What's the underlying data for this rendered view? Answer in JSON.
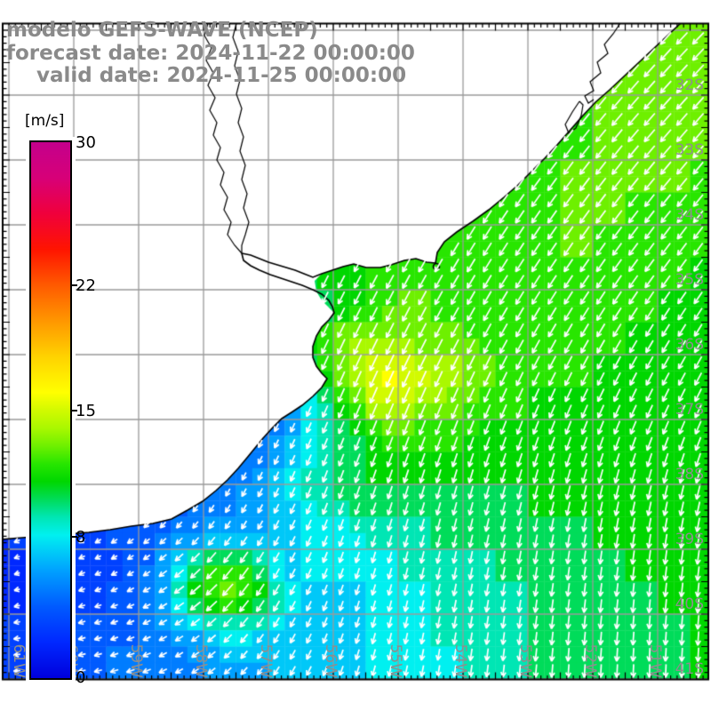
{
  "title": {
    "line1": "modelo GEFS-WAVE (NCEP)",
    "line2": "forecast date: 2024-11-22 00:00:00",
    "line3": "valid date: 2024-11-25 00:00:00"
  },
  "colorbar": {
    "unit": "[m/s]",
    "ticks": [
      {
        "value": 30,
        "label": "30"
      },
      {
        "value": 22,
        "label": "22"
      },
      {
        "value": 15,
        "label": "15"
      },
      {
        "value": 8,
        "label": "8"
      },
      {
        "value": 0,
        "label": "0"
      }
    ],
    "min": 0,
    "max": 30,
    "stops": [
      {
        "v": 0,
        "rgb": [
          0,
          0,
          220
        ]
      },
      {
        "v": 2,
        "rgb": [
          0,
          40,
          255
        ]
      },
      {
        "v": 4,
        "rgb": [
          0,
          90,
          255
        ]
      },
      {
        "v": 6,
        "rgb": [
          0,
          160,
          255
        ]
      },
      {
        "v": 8,
        "rgb": [
          0,
          240,
          240
        ]
      },
      {
        "v": 9,
        "rgb": [
          0,
          230,
          180
        ]
      },
      {
        "v": 10,
        "rgb": [
          0,
          220,
          90
        ]
      },
      {
        "v": 11,
        "rgb": [
          0,
          215,
          0
        ]
      },
      {
        "v": 12,
        "rgb": [
          40,
          230,
          0
        ]
      },
      {
        "v": 13,
        "rgb": [
          110,
          240,
          0
        ]
      },
      {
        "v": 14,
        "rgb": [
          170,
          248,
          0
        ]
      },
      {
        "v": 15,
        "rgb": [
          210,
          250,
          0
        ]
      },
      {
        "v": 16,
        "rgb": [
          255,
          255,
          0
        ]
      },
      {
        "v": 18,
        "rgb": [
          255,
          210,
          0
        ]
      },
      {
        "v": 20,
        "rgb": [
          255,
          150,
          0
        ]
      },
      {
        "v": 22,
        "rgb": [
          255,
          90,
          0
        ]
      },
      {
        "v": 24,
        "rgb": [
          255,
          20,
          0
        ]
      },
      {
        "v": 26,
        "rgb": [
          240,
          0,
          60
        ]
      },
      {
        "v": 28,
        "rgb": [
          215,
          0,
          120
        ]
      },
      {
        "v": 30,
        "rgb": [
          196,
          0,
          140
        ]
      }
    ]
  },
  "axes": {
    "lat_labels": [
      "32S",
      "33S",
      "34S",
      "35S",
      "36S",
      "37S",
      "38S",
      "39S",
      "40S",
      "41S"
    ],
    "lat_values": [
      -32,
      -33,
      -34,
      -35,
      -36,
      -37,
      -38,
      -39,
      -40,
      -41
    ],
    "lon_labels": [
      "61W",
      "60W",
      "59W",
      "58W",
      "57W",
      "56W",
      "55W",
      "54W",
      "53W",
      "52W",
      "51W"
    ],
    "lon_values": [
      -61,
      -60,
      -59,
      -58,
      -57,
      -56,
      -55,
      -54,
      -53,
      -52,
      -51
    ]
  },
  "colors": {
    "grid_line": "#9a9a9a",
    "coastline": "#000000",
    "border": "#000000",
    "arrow": "#ffffff",
    "land": "#ffffff",
    "title_text": "#8a8a8a",
    "axis_text": "#8e8e8e"
  },
  "chart_data": {
    "type": "heatmap",
    "units": "m/s",
    "speed_grid": {
      "lon0": -61.25,
      "dlon": 0.5,
      "lat0": -30.75,
      "dlat": 0.5,
      "cols": 23,
      "rows": 21,
      "values": [
        [
          8,
          8,
          8,
          8,
          8,
          8,
          8,
          8,
          8,
          9,
          9,
          9,
          9,
          10,
          10,
          10,
          11,
          11,
          12,
          12,
          13,
          13,
          13
        ],
        [
          8,
          8,
          8,
          8,
          8,
          8,
          8,
          8,
          8,
          9,
          9,
          9,
          10,
          10,
          10,
          11,
          11,
          12,
          12,
          13,
          13,
          13,
          13
        ],
        [
          8,
          8,
          8,
          8,
          8,
          8,
          8,
          8,
          9,
          9,
          9,
          10,
          10,
          10,
          11,
          11,
          11,
          12,
          12,
          13,
          13,
          13,
          13
        ],
        [
          8,
          8,
          8,
          8,
          8,
          8,
          8,
          9,
          9,
          9,
          10,
          10,
          10,
          11,
          11,
          11,
          11,
          9,
          12,
          13,
          13,
          13,
          13
        ],
        [
          8,
          8,
          8,
          8,
          8,
          8,
          9,
          9,
          9,
          10,
          10,
          10,
          11,
          11,
          11,
          11,
          12,
          12,
          12,
          13,
          13,
          13,
          13
        ],
        [
          8,
          8,
          8,
          8,
          8,
          9,
          9,
          9,
          10,
          10,
          10,
          11,
          11,
          11,
          11,
          12,
          12,
          12,
          13,
          13,
          13,
          13,
          12
        ],
        [
          8,
          8,
          8,
          8,
          9,
          9,
          9,
          10,
          10,
          10,
          11,
          11,
          11,
          11,
          12,
          12,
          12,
          12,
          13,
          13,
          12,
          12,
          12
        ],
        [
          7,
          7,
          7,
          8,
          8,
          9,
          9,
          10,
          10,
          11,
          11,
          11,
          11,
          12,
          12,
          12,
          12,
          12,
          13,
          12,
          12,
          12,
          12
        ],
        [
          6,
          6,
          7,
          7,
          8,
          8,
          9,
          9,
          8,
          10,
          11,
          11,
          12,
          12,
          12,
          12,
          12,
          12,
          12,
          12,
          12,
          12,
          11
        ],
        [
          5,
          5,
          6,
          6,
          7,
          8,
          8,
          9,
          7,
          7,
          9,
          11,
          12,
          13,
          12,
          12,
          12,
          12,
          12,
          12,
          12,
          11,
          11
        ],
        [
          4,
          5,
          5,
          6,
          7,
          7,
          8,
          8,
          6,
          8,
          12,
          14,
          14,
          13,
          13,
          12,
          12,
          12,
          12,
          12,
          11,
          11,
          11
        ],
        [
          4,
          4,
          5,
          5,
          6,
          7,
          8,
          8,
          4,
          6,
          11,
          14,
          16,
          15,
          14,
          13,
          12,
          12,
          12,
          11,
          11,
          11,
          11
        ],
        [
          4,
          4,
          4,
          5,
          6,
          7,
          7,
          8,
          4,
          5,
          9,
          12,
          15,
          14,
          13,
          12,
          12,
          11,
          11,
          11,
          11,
          11,
          11
        ],
        [
          3,
          4,
          4,
          5,
          5,
          6,
          7,
          7,
          4,
          6,
          8,
          10,
          12,
          12,
          12,
          11,
          11,
          11,
          11,
          11,
          11,
          11,
          11
        ],
        [
          3,
          3,
          4,
          4,
          5,
          5,
          3,
          4,
          5,
          7,
          9,
          10,
          11,
          11,
          11,
          11,
          11,
          11,
          11,
          11,
          11,
          11,
          11
        ],
        [
          3,
          3,
          3,
          4,
          4,
          5,
          4,
          5,
          6,
          7,
          9,
          10,
          10,
          10,
          10,
          10,
          10,
          11,
          11,
          11,
          11,
          11,
          11
        ],
        [
          2,
          3,
          3,
          3,
          4,
          4,
          5,
          6,
          6,
          7,
          8,
          8,
          9,
          9,
          10,
          10,
          10,
          10,
          10,
          11,
          11,
          11,
          11
        ],
        [
          2,
          2,
          3,
          3,
          3,
          5,
          9,
          12,
          11,
          7,
          8,
          8,
          8,
          9,
          9,
          9,
          10,
          10,
          10,
          10,
          11,
          11,
          11
        ],
        [
          2,
          2,
          3,
          3,
          4,
          5,
          10,
          13,
          12,
          8,
          7,
          7,
          8,
          8,
          9,
          9,
          9,
          10,
          10,
          10,
          10,
          11,
          11
        ],
        [
          3,
          3,
          3,
          4,
          4,
          5,
          6,
          8,
          8,
          7,
          7,
          7,
          8,
          8,
          9,
          9,
          9,
          10,
          10,
          10,
          10,
          10,
          11
        ],
        [
          3,
          3,
          4,
          4,
          5,
          5,
          5,
          6,
          6,
          7,
          7,
          7,
          8,
          8,
          8,
          9,
          9,
          10,
          10,
          10,
          10,
          10,
          11
        ]
      ]
    },
    "direction_grid": {
      "lon0": -61,
      "dlon": 1,
      "lat0": -31,
      "dlat": 1,
      "cols": 12,
      "rows": 11,
      "values": [
        [
          210,
          210,
          210,
          210,
          210,
          210,
          212,
          215,
          218,
          220,
          222,
          225
        ],
        [
          210,
          210,
          210,
          210,
          210,
          210,
          212,
          215,
          218,
          220,
          222,
          222
        ],
        [
          208,
          208,
          208,
          208,
          208,
          210,
          212,
          214,
          216,
          218,
          220,
          220
        ],
        [
          205,
          205,
          205,
          205,
          206,
          208,
          210,
          212,
          214,
          216,
          218,
          218
        ],
        [
          205,
          205,
          205,
          205,
          206,
          207,
          208,
          210,
          212,
          214,
          215,
          215
        ],
        [
          210,
          210,
          208,
          206,
          205,
          205,
          206,
          207,
          208,
          209,
          210,
          210
        ],
        [
          215,
          212,
          210,
          207,
          205,
          203,
          202,
          202,
          202,
          203,
          204,
          205
        ],
        [
          230,
          225,
          218,
          210,
          205,
          200,
          198,
          196,
          195,
          194,
          194,
          195
        ],
        [
          250,
          245,
          235,
          222,
          210,
          200,
          195,
          192,
          190,
          188,
          188,
          188
        ],
        [
          260,
          255,
          245,
          230,
          212,
          200,
          193,
          190,
          188,
          186,
          185,
          185
        ],
        [
          265,
          260,
          250,
          235,
          215,
          200,
          192,
          188,
          185,
          183,
          182,
          182
        ]
      ]
    }
  },
  "geo": {
    "land_fill": [
      766,
      26,
      750,
      41,
      734,
      56,
      718,
      71,
      702,
      86,
      686,
      101,
      670,
      115,
      655,
      131,
      641,
      147,
      627,
      163,
      613,
      178,
      598,
      193,
      583,
      208,
      567,
      222,
      550,
      236,
      532,
      249,
      514,
      261,
      500,
      272,
      492,
      284,
      490,
      296,
      480,
      295,
      468,
      291,
      455,
      293,
      440,
      298,
      428,
      301,
      412,
      301,
      398,
      297,
      386,
      300,
      374,
      304,
      362,
      308,
      354,
      316,
      356,
      328,
      362,
      338,
      370,
      346,
      376,
      352,
      370,
      360,
      362,
      368,
      356,
      378,
      352,
      390,
      352,
      402,
      356,
      412,
      362,
      420,
      368,
      426,
      362,
      436,
      352,
      446,
      340,
      456,
      328,
      464,
      317,
      471,
      306,
      482,
      296,
      493,
      287,
      504,
      278,
      515,
      268,
      527,
      256,
      540,
      243,
      552,
      228,
      564,
      211,
      574,
      193,
      584,
      172,
      589,
      148,
      592,
      124,
      596,
      100,
      599,
      75,
      601,
      50,
      603,
      25,
      605,
      2,
      607,
      2,
      26
    ],
    "coast_stroke": [
      766,
      26,
      750,
      41,
      734,
      56,
      718,
      71,
      702,
      86,
      686,
      101,
      670,
      115,
      655,
      131,
      641,
      147,
      627,
      163,
      613,
      178,
      598,
      193,
      583,
      208,
      567,
      222,
      550,
      236,
      532,
      249,
      514,
      261,
      500,
      272,
      492,
      284,
      490,
      296,
      480,
      295,
      468,
      291,
      455,
      293,
      440,
      298,
      428,
      301,
      412,
      301,
      398,
      297,
      386,
      300,
      374,
      304,
      362,
      308,
      352,
      312,
      342,
      308,
      332,
      304,
      322,
      301,
      312,
      298,
      302,
      295,
      292,
      291,
      282,
      287,
      272,
      285,
      274,
      293,
      282,
      299,
      292,
      304,
      304,
      309,
      316,
      313,
      328,
      317,
      340,
      321,
      352,
      326,
      362,
      331,
      370,
      338,
      374,
      345,
      376,
      352,
      370,
      360,
      362,
      368,
      356,
      378,
      352,
      390,
      352,
      402,
      356,
      412,
      362,
      420,
      368,
      426,
      362,
      436,
      352,
      446,
      340,
      456,
      328,
      464,
      317,
      471,
      306,
      482,
      296,
      493,
      287,
      504,
      278,
      515,
      268,
      527,
      256,
      540,
      243,
      552,
      228,
      564,
      211,
      574,
      193,
      584,
      172,
      589,
      148,
      592,
      124,
      596,
      100,
      599,
      75,
      601,
      50,
      603,
      25,
      605,
      2,
      607
    ],
    "river1": [
      234,
      26,
      230,
      40,
      238,
      54,
      232,
      68,
      240,
      82,
      234,
      96,
      242,
      110,
      236,
      124,
      244,
      138,
      240,
      152,
      248,
      166,
      244,
      180,
      252,
      194,
      248,
      208,
      256,
      222,
      252,
      236,
      260,
      250,
      256,
      264,
      264,
      276,
      272,
      285
    ],
    "river2": [
      266,
      26,
      262,
      42,
      268,
      58,
      264,
      74,
      270,
      90,
      266,
      106,
      272,
      122,
      268,
      138,
      274,
      154,
      270,
      170,
      276,
      186,
      272,
      202,
      278,
      218,
      274,
      234,
      280,
      250,
      276,
      264,
      272,
      276,
      272,
      285
    ],
    "lagoon_inner": [
      698,
      26,
      690,
      38,
      680,
      50,
      684,
      60,
      672,
      70,
      676,
      82,
      664,
      92,
      668,
      102,
      658,
      108,
      662,
      116,
      668,
      112
    ],
    "lagoa_mirim": [
      652,
      114,
      644,
      126,
      636,
      140,
      640,
      150,
      648,
      144,
      654,
      130,
      656,
      118,
      652,
      114
    ],
    "island": [
      491,
      300
    ]
  }
}
